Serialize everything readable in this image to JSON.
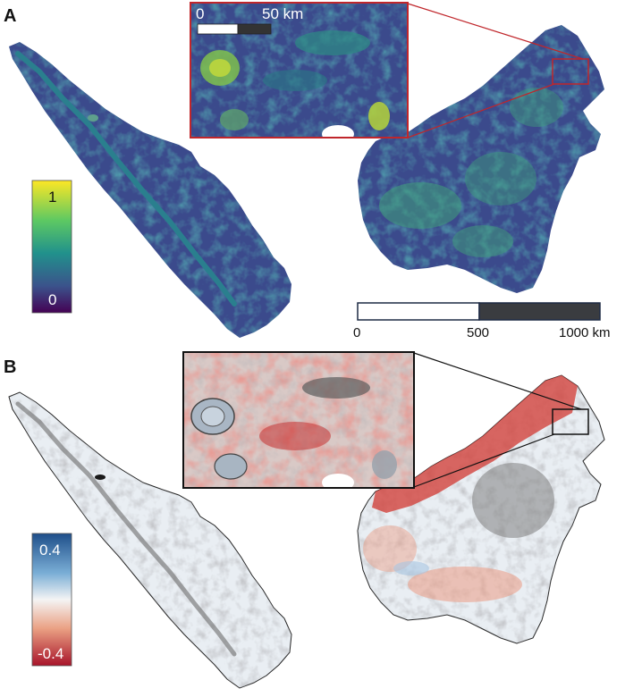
{
  "panels": {
    "a": {
      "letter": "A",
      "colorbar": {
        "max_label": "1",
        "min_label": "0",
        "colors": [
          "#fde725",
          "#5ec962",
          "#21918c",
          "#3b528b",
          "#440154"
        ]
      },
      "inset_scale": {
        "start_label": "0",
        "end_label": "50 km"
      },
      "inset_frame_color": "#c0262b",
      "map_colors": {
        "base": "#3b4a8c",
        "mid": "#2a7f8e",
        "high": "#3fa07a",
        "peak": "#b6d84a"
      }
    },
    "b": {
      "letter": "B",
      "colorbar": {
        "max_label": "0.4",
        "min_label": "-0.4",
        "colors": [
          "#1f4f8a",
          "#7aaed6",
          "#f4f4f4",
          "#eaa083",
          "#a8142a"
        ]
      },
      "inset_frame_color": "#111111",
      "map_colors": {
        "base": "#e9eef3",
        "grey": "#8a8a8a",
        "red": "#d2423c",
        "light_red": "#eb9b83",
        "blue": "#a9c6e3"
      }
    }
  },
  "scale_bar": {
    "label_0": "0",
    "label_500": "500",
    "label_1000": "1000 km"
  }
}
